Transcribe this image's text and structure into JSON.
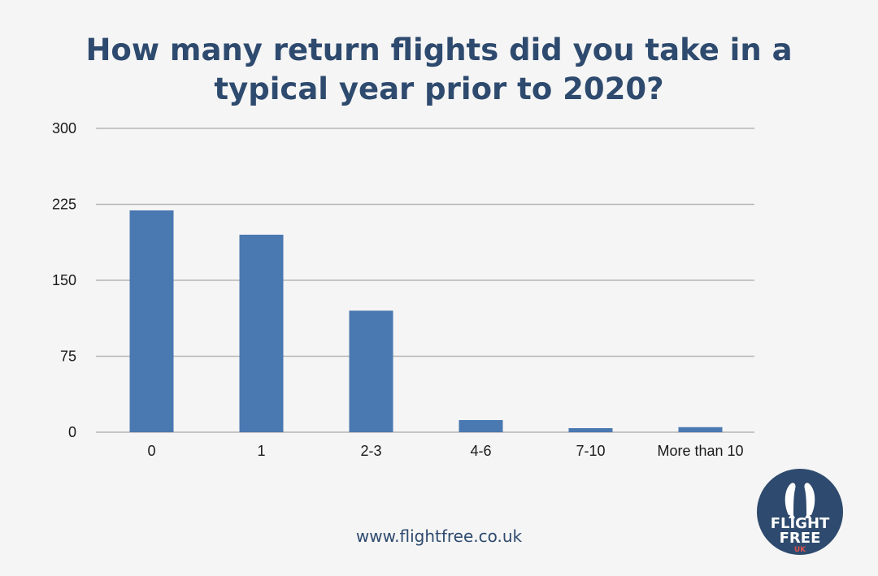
{
  "chart_data": {
    "type": "bar",
    "title_lines": [
      "How many return  flights did you take in a",
      "typical year prior to 2020?"
    ],
    "categories": [
      "0",
      "1",
      "2-3",
      "4-6",
      "7-10",
      "More than 10"
    ],
    "values": [
      219,
      195,
      120,
      12,
      4,
      5
    ],
    "ylim": [
      0,
      300
    ],
    "yticks": [
      0,
      75,
      150,
      225,
      300
    ],
    "grid": true,
    "bar_color": "#4a78b0"
  },
  "footer": {
    "website": "www.flightfree.co.uk"
  },
  "logo": {
    "line1": "FLIGHT",
    "line2": "FREE",
    "line3": "UK",
    "bg_color": "#2e4a6e",
    "accent_color": "#d9534f"
  }
}
